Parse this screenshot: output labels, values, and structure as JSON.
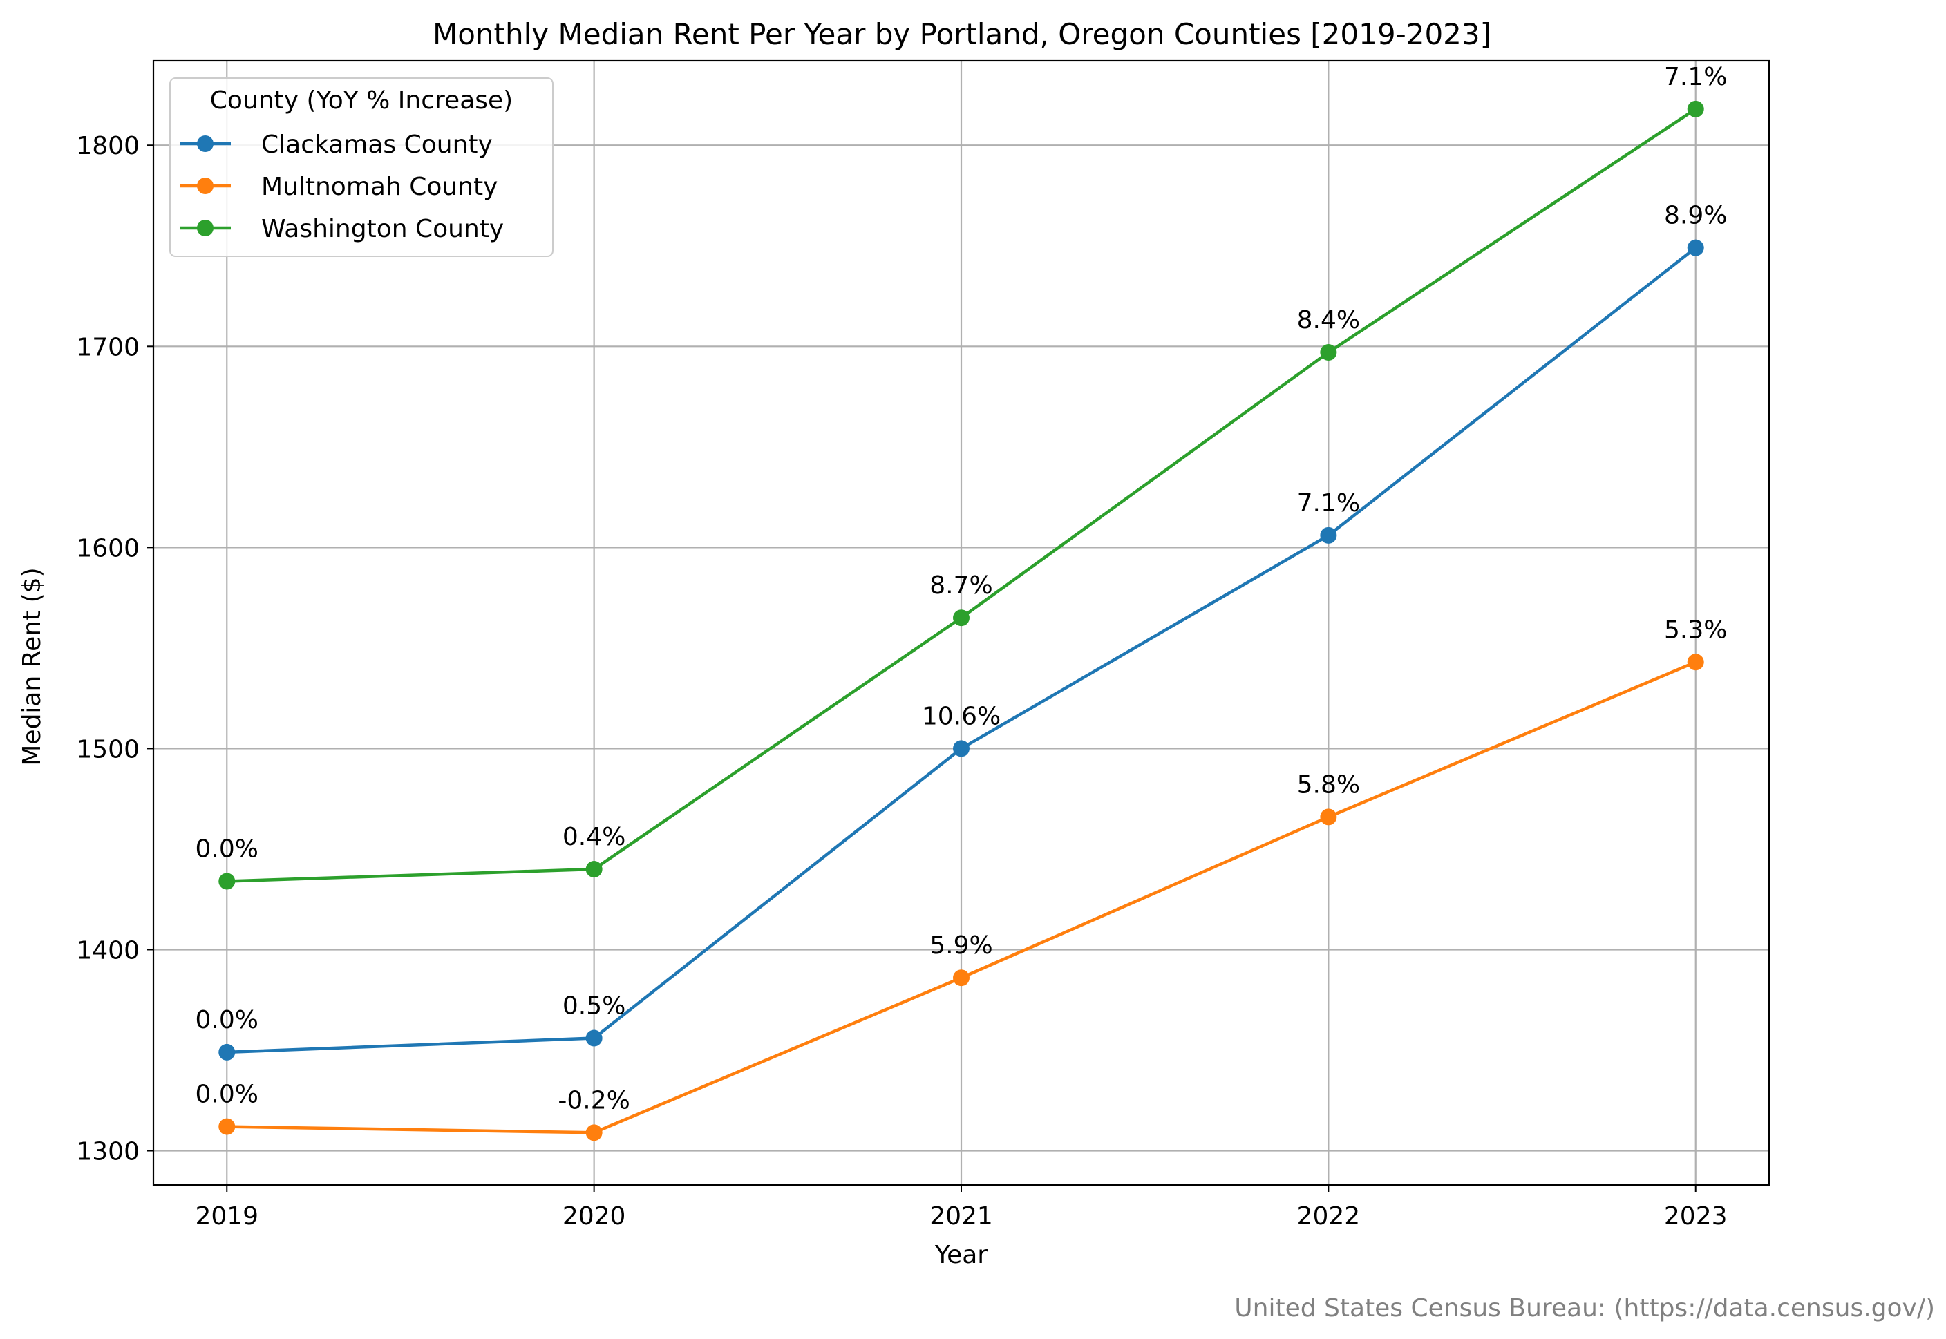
{
  "chart_data": {
    "type": "line",
    "title": "Monthly Median Rent Per Year by Portland, Oregon Counties [2019-2023]",
    "xlabel": "Year",
    "ylabel": "Median Rent ($)",
    "x": [
      2019,
      2020,
      2021,
      2022,
      2023
    ],
    "x_tick_labels": [
      "2019",
      "2020",
      "2021",
      "2022",
      "2023"
    ],
    "y_ticks": [
      1300,
      1400,
      1500,
      1600,
      1700,
      1800
    ],
    "y_tick_labels": [
      "1300",
      "1400",
      "1500",
      "1600",
      "1700",
      "1800"
    ],
    "xlim": [
      2018.8,
      2023.2
    ],
    "ylim": [
      1283,
      1842
    ],
    "grid": true,
    "legend": {
      "title": "County (YoY % Increase)",
      "placement": "top-left"
    },
    "series": [
      {
        "name": "Clackamas County",
        "color": "#1f77b4",
        "values": [
          1349,
          1356,
          1500,
          1606,
          1749
        ],
        "labels": [
          "0.0%",
          "0.5%",
          "10.6%",
          "7.1%",
          "8.9%"
        ]
      },
      {
        "name": "Multnomah County",
        "color": "#ff7f0e",
        "values": [
          1312,
          1309,
          1386,
          1466,
          1543
        ],
        "labels": [
          "0.0%",
          "-0.2%",
          "5.9%",
          "5.8%",
          "5.3%"
        ]
      },
      {
        "name": "Washington County",
        "color": "#2ca02c",
        "values": [
          1434,
          1440,
          1565,
          1697,
          1818
        ],
        "labels": [
          "0.0%",
          "0.4%",
          "8.7%",
          "8.4%",
          "7.1%"
        ]
      }
    ]
  },
  "source_note": "United States Census Bureau: (https://data.census.gov/)"
}
